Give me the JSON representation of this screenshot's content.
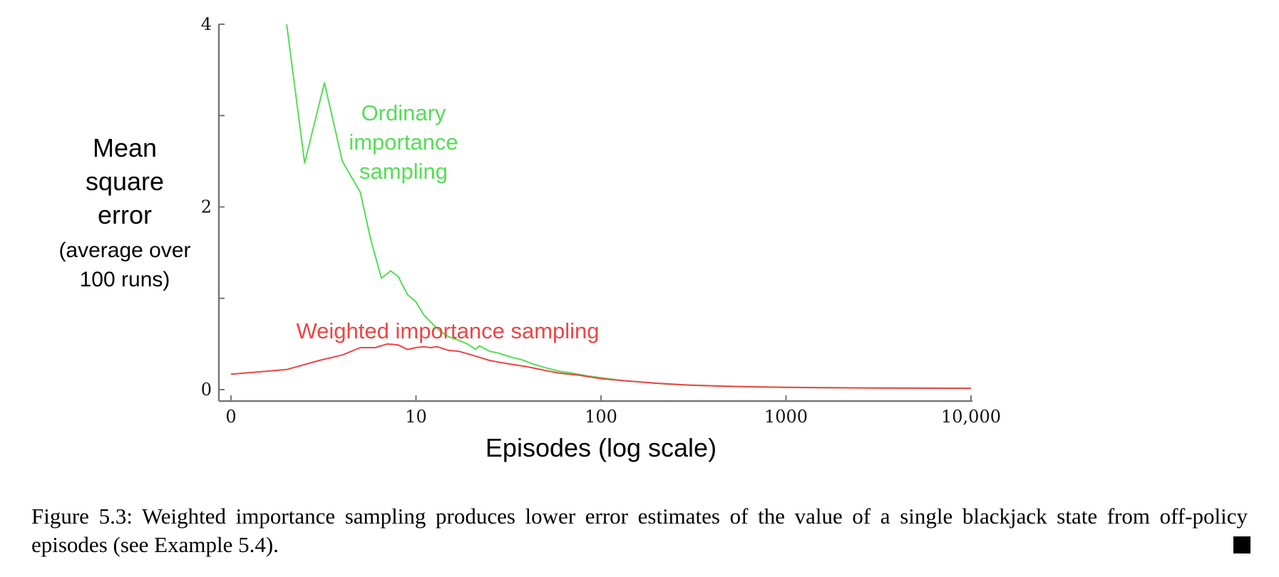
{
  "chart_data": {
    "type": "line",
    "title": "",
    "xlabel": "Episodes (log scale)",
    "ylabel_lines": [
      "Mean",
      "square",
      "error"
    ],
    "ylabel_sub_lines": [
      "(average over",
      "100 runs)"
    ],
    "x_scale": "log",
    "x_ticks": [
      {
        "value": 1,
        "label": "0"
      },
      {
        "value": 10,
        "label": "10"
      },
      {
        "value": 100,
        "label": "100"
      },
      {
        "value": 1000,
        "label": "1000"
      },
      {
        "value": 10000,
        "label": "10,000"
      }
    ],
    "xlim": [
      1,
      10000
    ],
    "y_ticks": [
      {
        "value": 0,
        "label": "0"
      },
      {
        "value": 1,
        "label": ""
      },
      {
        "value": 2,
        "label": "2"
      },
      {
        "value": 3,
        "label": ""
      },
      {
        "value": 4,
        "label": "4"
      }
    ],
    "ylim": [
      0,
      4
    ],
    "grid": false,
    "series": [
      {
        "name": "Ordinary importance sampling",
        "label_lines": [
          "Ordinary",
          "importance",
          "sampling"
        ],
        "color": "#55dd55",
        "points": [
          [
            2,
            4.0
          ],
          [
            2.5,
            2.48
          ],
          [
            3.2,
            3.36
          ],
          [
            4,
            2.5
          ],
          [
            5,
            2.16
          ],
          [
            5.7,
            1.64
          ],
          [
            6.5,
            1.22
          ],
          [
            7.3,
            1.3
          ],
          [
            8,
            1.24
          ],
          [
            9,
            1.04
          ],
          [
            10,
            0.96
          ],
          [
            11,
            0.82
          ],
          [
            12,
            0.74
          ],
          [
            13.5,
            0.64
          ],
          [
            15,
            0.58
          ],
          [
            17,
            0.54
          ],
          [
            19,
            0.5
          ],
          [
            21,
            0.44
          ],
          [
            22,
            0.48
          ],
          [
            25,
            0.42
          ],
          [
            28,
            0.4
          ],
          [
            32,
            0.36
          ],
          [
            37,
            0.33
          ],
          [
            43,
            0.28
          ],
          [
            50,
            0.24
          ],
          [
            60,
            0.2
          ],
          [
            70,
            0.18
          ],
          [
            85,
            0.15
          ],
          [
            100,
            0.13
          ],
          [
            130,
            0.1
          ],
          [
            170,
            0.08
          ],
          [
            230,
            0.06
          ],
          [
            300,
            0.05
          ],
          [
            450,
            0.04
          ],
          [
            700,
            0.03
          ],
          [
            1000,
            0.025
          ],
          [
            2000,
            0.02
          ],
          [
            5000,
            0.017
          ],
          [
            10000,
            0.015
          ]
        ]
      },
      {
        "name": "Weighted importance sampling",
        "label_lines": [
          "Weighted importance sampling"
        ],
        "color": "#ee4444",
        "points": [
          [
            1,
            0.17
          ],
          [
            2,
            0.22
          ],
          [
            3,
            0.32
          ],
          [
            4,
            0.38
          ],
          [
            5,
            0.46
          ],
          [
            6,
            0.46
          ],
          [
            7,
            0.5
          ],
          [
            8,
            0.49
          ],
          [
            9,
            0.44
          ],
          [
            10,
            0.46
          ],
          [
            11,
            0.47
          ],
          [
            12,
            0.46
          ],
          [
            13,
            0.47
          ],
          [
            15,
            0.43
          ],
          [
            17,
            0.42
          ],
          [
            20,
            0.38
          ],
          [
            25,
            0.32
          ],
          [
            30,
            0.29
          ],
          [
            40,
            0.25
          ],
          [
            50,
            0.21
          ],
          [
            60,
            0.18
          ],
          [
            75,
            0.16
          ],
          [
            100,
            0.12
          ],
          [
            150,
            0.09
          ],
          [
            200,
            0.07
          ],
          [
            300,
            0.05
          ],
          [
            500,
            0.035
          ],
          [
            1000,
            0.025
          ],
          [
            3000,
            0.018
          ],
          [
            10000,
            0.015
          ]
        ]
      }
    ]
  },
  "caption": {
    "text": "Figure 5.3: Weighted importance sampling produces lower error estimates of the value of a single blackjack state from off-policy episodes (see Example 5.4)."
  }
}
